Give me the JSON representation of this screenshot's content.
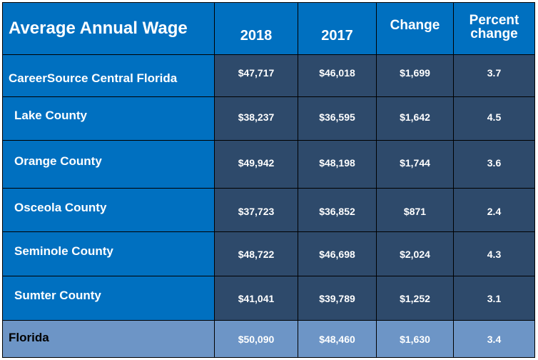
{
  "table": {
    "title": "Average Annual Wage",
    "headers": [
      "2018",
      "2017",
      "Change",
      "Percent change"
    ],
    "rows": [
      {
        "name": "CareerSource Central Florida",
        "v2018": "$47,717",
        "v2017": "$46,018",
        "change": "$1,699",
        "pct": "3.7"
      },
      {
        "name": "Lake County",
        "v2018": "$38,237",
        "v2017": "$36,595",
        "change": "$1,642",
        "pct": "4.5"
      },
      {
        "name": "Orange County",
        "v2018": "$49,942",
        "v2017": "$48,198",
        "change": "$1,744",
        "pct": "3.6"
      },
      {
        "name": "Osceola County",
        "v2018": "$37,723",
        "v2017": "$36,852",
        "change": "$871",
        "pct": "2.4"
      },
      {
        "name": "Seminole County",
        "v2018": "$48,722",
        "v2017": "$46,698",
        "change": "$2,024",
        "pct": "4.3"
      },
      {
        "name": "Sumter County",
        "v2018": "$41,041",
        "v2017": "$39,789",
        "change": "$1,252",
        "pct": "3.1"
      },
      {
        "name": "Florida",
        "v2018": "$50,090",
        "v2017": "$48,460",
        "change": "$1,630",
        "pct": "3.4"
      }
    ]
  },
  "colors": {
    "header_blue": "#0070c0",
    "value_navy": "#2e4a6b",
    "florida_row": "#6d95c6"
  },
  "chart_data": {
    "type": "table",
    "title": "Average Annual Wage",
    "columns": [
      "",
      "2018",
      "2017",
      "Change",
      "Percent change"
    ],
    "rows": [
      [
        "CareerSource Central Florida",
        47717,
        46018,
        1699,
        3.7
      ],
      [
        "Lake County",
        38237,
        36595,
        1642,
        4.5
      ],
      [
        "Orange County",
        49942,
        48198,
        1744,
        3.6
      ],
      [
        "Osceola County",
        37723,
        36852,
        871,
        2.4
      ],
      [
        "Seminole County",
        48722,
        46698,
        2024,
        4.3
      ],
      [
        "Sumter County",
        41041,
        39789,
        1252,
        3.1
      ],
      [
        "Florida",
        50090,
        48460,
        1630,
        3.4
      ]
    ]
  }
}
